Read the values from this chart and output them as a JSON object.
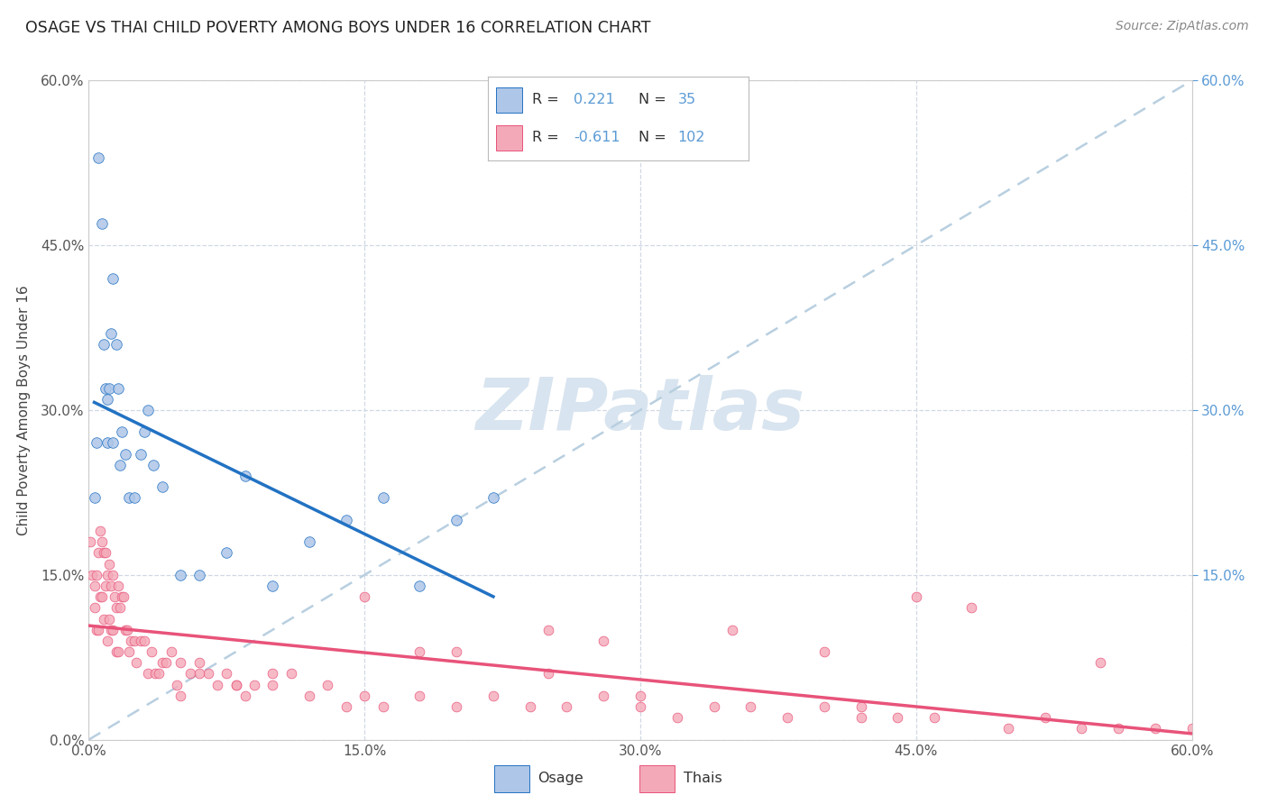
{
  "title": "OSAGE VS THAI CHILD POVERTY AMONG BOYS UNDER 16 CORRELATION CHART",
  "source": "Source: ZipAtlas.com",
  "ylabel": "Child Poverty Among Boys Under 16",
  "xlim": [
    0.0,
    0.6
  ],
  "ylim": [
    0.0,
    0.6
  ],
  "tick_vals": [
    0.0,
    0.15,
    0.3,
    0.45,
    0.6
  ],
  "osage_R": 0.221,
  "osage_N": 35,
  "thai_R": -0.611,
  "thai_N": 102,
  "osage_color": "#aec6e8",
  "thai_color": "#f4a9b8",
  "osage_line_color": "#2272c3",
  "thai_line_color": "#e8537a",
  "dashed_line_color": "#b8cfe0",
  "background_color": "#ffffff",
  "grid_color": "#d0d8e4",
  "watermark_color": "#d8e4ef",
  "right_label_color": "#5b9bd5",
  "osage_x": [
    0.005,
    0.007,
    0.013,
    0.008,
    0.009,
    0.01,
    0.011,
    0.012,
    0.015,
    0.01,
    0.013,
    0.016,
    0.017,
    0.018,
    0.02,
    0.022,
    0.025,
    0.028,
    0.03,
    0.032,
    0.003,
    0.004,
    0.035,
    0.04,
    0.05,
    0.06,
    0.075,
    0.085,
    0.1,
    0.12,
    0.14,
    0.16,
    0.18,
    0.2,
    0.22
  ],
  "osage_y": [
    0.53,
    0.47,
    0.42,
    0.36,
    0.32,
    0.31,
    0.32,
    0.37,
    0.36,
    0.27,
    0.27,
    0.32,
    0.25,
    0.28,
    0.26,
    0.22,
    0.22,
    0.26,
    0.28,
    0.3,
    0.22,
    0.27,
    0.25,
    0.23,
    0.15,
    0.15,
    0.17,
    0.24,
    0.14,
    0.18,
    0.2,
    0.22,
    0.14,
    0.2,
    0.22
  ],
  "thai_x": [
    0.001,
    0.002,
    0.003,
    0.003,
    0.004,
    0.004,
    0.005,
    0.005,
    0.006,
    0.006,
    0.007,
    0.007,
    0.008,
    0.008,
    0.009,
    0.009,
    0.01,
    0.01,
    0.011,
    0.011,
    0.012,
    0.012,
    0.013,
    0.013,
    0.014,
    0.015,
    0.015,
    0.016,
    0.016,
    0.017,
    0.018,
    0.019,
    0.02,
    0.021,
    0.022,
    0.023,
    0.025,
    0.026,
    0.028,
    0.03,
    0.032,
    0.034,
    0.036,
    0.038,
    0.04,
    0.042,
    0.045,
    0.048,
    0.05,
    0.055,
    0.06,
    0.065,
    0.07,
    0.075,
    0.08,
    0.085,
    0.09,
    0.1,
    0.11,
    0.12,
    0.13,
    0.14,
    0.15,
    0.16,
    0.18,
    0.2,
    0.22,
    0.24,
    0.26,
    0.28,
    0.3,
    0.32,
    0.34,
    0.36,
    0.38,
    0.4,
    0.42,
    0.44,
    0.46,
    0.5,
    0.52,
    0.54,
    0.56,
    0.58,
    0.6,
    0.42,
    0.45,
    0.3,
    0.35,
    0.28,
    0.25,
    0.2,
    0.18,
    0.55,
    0.48,
    0.4,
    0.25,
    0.15,
    0.1,
    0.08,
    0.05,
    0.06
  ],
  "thai_y": [
    0.18,
    0.15,
    0.14,
    0.12,
    0.15,
    0.1,
    0.17,
    0.1,
    0.19,
    0.13,
    0.18,
    0.13,
    0.17,
    0.11,
    0.17,
    0.14,
    0.15,
    0.09,
    0.16,
    0.11,
    0.14,
    0.1,
    0.15,
    0.1,
    0.13,
    0.12,
    0.08,
    0.14,
    0.08,
    0.12,
    0.13,
    0.13,
    0.1,
    0.1,
    0.08,
    0.09,
    0.09,
    0.07,
    0.09,
    0.09,
    0.06,
    0.08,
    0.06,
    0.06,
    0.07,
    0.07,
    0.08,
    0.05,
    0.07,
    0.06,
    0.07,
    0.06,
    0.05,
    0.06,
    0.05,
    0.04,
    0.05,
    0.05,
    0.06,
    0.04,
    0.05,
    0.03,
    0.04,
    0.03,
    0.04,
    0.03,
    0.04,
    0.03,
    0.03,
    0.04,
    0.03,
    0.02,
    0.03,
    0.03,
    0.02,
    0.03,
    0.02,
    0.02,
    0.02,
    0.01,
    0.02,
    0.01,
    0.01,
    0.01,
    0.01,
    0.03,
    0.13,
    0.04,
    0.1,
    0.09,
    0.1,
    0.08,
    0.08,
    0.07,
    0.12,
    0.08,
    0.06,
    0.13,
    0.06,
    0.05,
    0.04,
    0.06
  ]
}
